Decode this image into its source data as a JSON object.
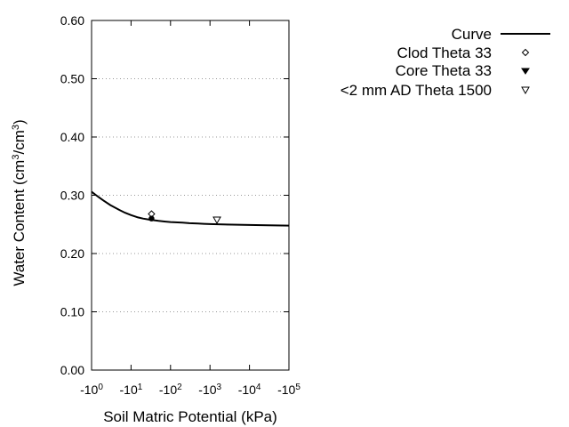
{
  "chart_data": {
    "type": "scatter",
    "title": "",
    "xlabel": "Soil Matric Potential (kPa)",
    "ylabel": {
      "base": "Water Content (cm",
      "sup1": "3",
      "mid": "/cm",
      "sup2": "3",
      "end": ")"
    },
    "x_scale": "log",
    "x_axis_direction": "negative potential, increasing magnitude to the right",
    "xlim_magnitude": [
      1,
      100000
    ],
    "ylim": [
      0,
      0.6
    ],
    "grid": "horizontal dotted",
    "legend_placement": "top-right, outside plot",
    "x_ticks": [
      {
        "magnitude": 1,
        "base": "-10",
        "exp": "0"
      },
      {
        "magnitude": 10,
        "base": "-10",
        "exp": "1"
      },
      {
        "magnitude": 100,
        "base": "-10",
        "exp": "2"
      },
      {
        "magnitude": 1000,
        "base": "-10",
        "exp": "3"
      },
      {
        "magnitude": 10000,
        "base": "-10",
        "exp": "4"
      },
      {
        "magnitude": 100000,
        "base": "-10",
        "exp": "5"
      }
    ],
    "y_ticks": [
      {
        "value": 0.0,
        "label": "0.00"
      },
      {
        "value": 0.1,
        "label": "0.10"
      },
      {
        "value": 0.2,
        "label": "0.20"
      },
      {
        "value": 0.3,
        "label": "0.30"
      },
      {
        "value": 0.4,
        "label": "0.40"
      },
      {
        "value": 0.5,
        "label": "0.50"
      },
      {
        "value": 0.6,
        "label": "0.60"
      }
    ],
    "series": [
      {
        "name": "Curve",
        "kind": "line",
        "color": "#000000",
        "x_magnitude": [
          1,
          1.5,
          2,
          3,
          5,
          7,
          10,
          15,
          20,
          30,
          50,
          70,
          100,
          200,
          300,
          500,
          700,
          1000,
          2000,
          5000,
          10000,
          30000,
          100000
        ],
        "y": [
          0.306,
          0.297,
          0.291,
          0.283,
          0.275,
          0.27,
          0.266,
          0.262,
          0.26,
          0.258,
          0.256,
          0.255,
          0.254,
          0.253,
          0.252,
          0.2515,
          0.251,
          0.2505,
          0.25,
          0.2495,
          0.249,
          0.2485,
          0.248
        ]
      },
      {
        "name": "Clod Theta 33",
        "kind": "marker",
        "marker": "open-diamond",
        "x_magnitude": [
          33
        ],
        "y": [
          0.268
        ]
      },
      {
        "name": "Core Theta 33",
        "kind": "marker",
        "marker": "filled-circle",
        "x_magnitude": [
          33
        ],
        "y": [
          0.26
        ]
      },
      {
        "name": "<2 mm AD Theta 1500",
        "kind": "marker",
        "marker": "open-triangle-down",
        "x_magnitude": [
          1500
        ],
        "y": [
          0.258
        ]
      }
    ]
  }
}
